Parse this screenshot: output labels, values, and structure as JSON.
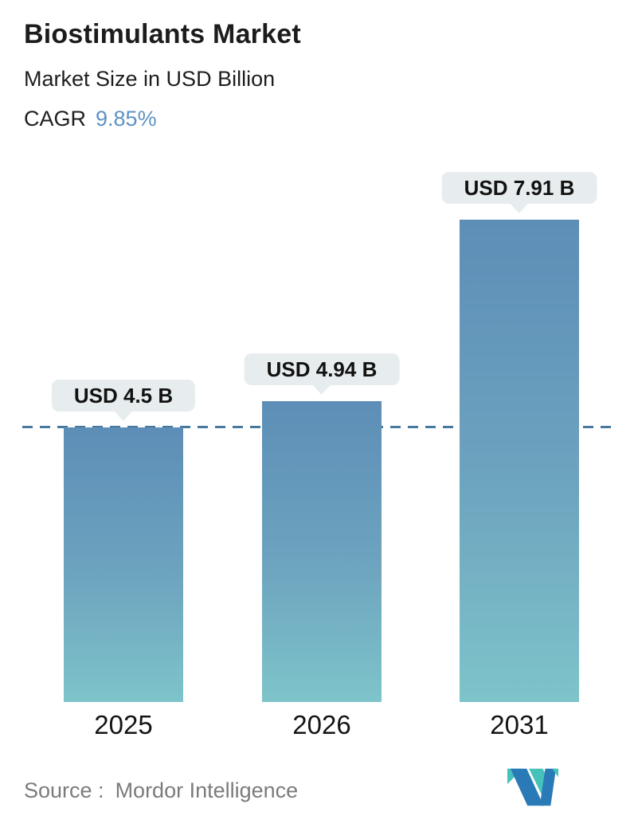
{
  "header": {
    "title": "Biostimulants Market",
    "subtitle": "Market Size in USD Billion",
    "cagr_label": "CAGR",
    "cagr_value": "9.85%"
  },
  "chart_data": {
    "type": "bar",
    "title": "Biostimulants Market",
    "subtitle": "Market Size in USD Billion",
    "unit": "USD Billion",
    "categories": [
      "2025",
      "2026",
      "2031"
    ],
    "values": [
      4.5,
      4.94,
      7.91
    ],
    "bar_labels": [
      "USD 4.5 B",
      "USD 4.94 B",
      "USD 7.91 B"
    ],
    "reference_line_value": 4.5,
    "ylim": [
      0,
      8.5
    ],
    "grid": false,
    "legend": "none",
    "colors": {
      "bar_gradient_top": "#5d8eb7",
      "bar_gradient_bottom": "#7ec4ca",
      "reference_line": "#47799f",
      "label_bubble_bg": "#e7edee",
      "cagr_accent": "#5d92c4"
    }
  },
  "footer": {
    "source_label": "Source :",
    "source_value": "Mordor Intelligence",
    "logo": "mordor-intelligence-logo",
    "logo_colors": {
      "teal": "#45c2ba",
      "blue": "#2b7ab8"
    }
  }
}
